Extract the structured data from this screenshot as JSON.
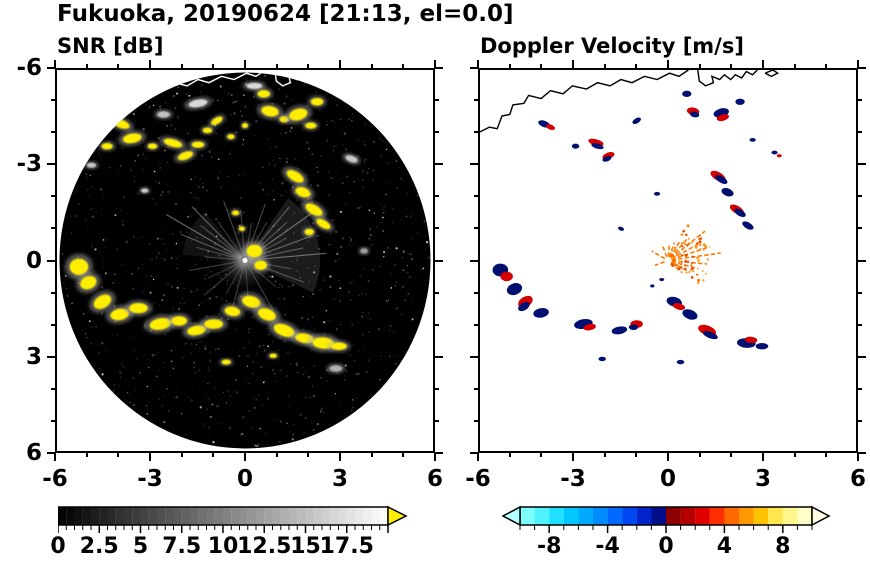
{
  "header": {
    "title": "Fukuoka, 20190624 [21:13, el=0.0]"
  },
  "panels": {
    "snr": {
      "title": "SNR [dB]"
    },
    "doppler": {
      "title": "Doppler Velocity [m/s]"
    }
  },
  "axes": {
    "range": [
      -6,
      6
    ],
    "major_tick_values": [
      -6,
      -3,
      0,
      3,
      6
    ],
    "minor_tick_step": 1,
    "x_tick_labels": [
      "-6",
      "-3",
      "0",
      "3",
      "6"
    ],
    "y_tick_labels": [
      "6",
      "3",
      "0",
      "-3",
      "-6"
    ]
  },
  "coastline": {
    "main": [
      [
        -6.0,
        4.05
      ],
      [
        -5.7,
        4.2
      ],
      [
        -5.45,
        4.15
      ],
      [
        -5.3,
        4.55
      ],
      [
        -5.05,
        4.6
      ],
      [
        -4.95,
        4.9
      ],
      [
        -4.6,
        4.95
      ],
      [
        -4.45,
        5.2
      ],
      [
        -4.05,
        5.1
      ],
      [
        -3.75,
        5.35
      ],
      [
        -3.35,
        5.25
      ],
      [
        -3.05,
        5.5
      ],
      [
        -2.6,
        5.4
      ],
      [
        -2.25,
        5.6
      ],
      [
        -1.85,
        5.5
      ],
      [
        -1.5,
        5.7
      ],
      [
        -1.15,
        5.6
      ],
      [
        -0.75,
        5.8
      ],
      [
        -0.35,
        5.7
      ],
      [
        0.05,
        5.9
      ],
      [
        0.35,
        5.8
      ],
      [
        0.65,
        6.0
      ]
    ],
    "peninsula": [
      [
        0.95,
        6.0
      ],
      [
        1.0,
        5.65
      ],
      [
        1.2,
        5.5
      ],
      [
        1.45,
        5.6
      ],
      [
        1.4,
        5.8
      ],
      [
        1.65,
        5.7
      ],
      [
        1.8,
        5.85
      ],
      [
        2.0,
        5.7
      ],
      [
        2.15,
        5.85
      ],
      [
        2.35,
        5.75
      ],
      [
        2.5,
        5.95
      ],
      [
        2.7,
        5.85
      ],
      [
        2.85,
        6.0
      ]
    ],
    "island": [
      [
        3.1,
        5.9
      ],
      [
        3.3,
        5.8
      ],
      [
        3.5,
        5.9
      ],
      [
        3.35,
        6.0
      ],
      [
        3.1,
        5.9
      ]
    ]
  },
  "velocity_colors": {
    "navy": "#001070",
    "red": "#d40000",
    "blue": "#2a52ee",
    "orange": "#ff7a00"
  },
  "chart_data": [
    {
      "type": "heatmap",
      "title": "SNR [dB]",
      "xlabel": "",
      "ylabel": "",
      "xlim": [
        -6,
        6
      ],
      "ylim": [
        -6,
        6
      ],
      "radar_disk": {
        "center": [
          0,
          0
        ],
        "radius": 5.92,
        "background": "#000000"
      },
      "colorbar": {
        "min": 0,
        "max": 20,
        "step": 0.5,
        "tick_labels": [
          "0",
          "2.5",
          "5",
          "7.5",
          "10",
          "12.5",
          "15",
          "17.5"
        ],
        "scheme": "grayscale black-to-white",
        "overflow_color": "#ffee00"
      },
      "echo_color": "#ffee00",
      "echoes": [
        [
          -3.95,
          4.3,
          0.28,
          0.13,
          -20
        ],
        [
          -3.6,
          3.85,
          0.3,
          0.15,
          10
        ],
        [
          -4.4,
          3.6,
          0.18,
          0.1,
          0
        ],
        [
          -2.95,
          3.6,
          0.15,
          0.09,
          0
        ],
        [
          -2.3,
          3.7,
          0.3,
          0.12,
          -15
        ],
        [
          -1.9,
          3.3,
          0.25,
          0.12,
          20
        ],
        [
          -1.5,
          3.65,
          0.2,
          0.1,
          0
        ],
        [
          -1.2,
          4.1,
          0.15,
          0.09,
          0
        ],
        [
          -0.9,
          4.4,
          0.2,
          0.1,
          30
        ],
        [
          -0.45,
          3.9,
          0.12,
          0.08,
          0
        ],
        [
          0.0,
          4.25,
          0.1,
          0.08,
          0
        ],
        [
          0.6,
          5.25,
          0.2,
          0.12,
          0
        ],
        [
          0.8,
          4.7,
          0.28,
          0.16,
          -10
        ],
        [
          1.25,
          4.45,
          0.15,
          0.1,
          0
        ],
        [
          1.7,
          4.6,
          0.3,
          0.18,
          15
        ],
        [
          2.3,
          5.0,
          0.2,
          0.12,
          0
        ],
        [
          2.1,
          4.25,
          0.18,
          0.1,
          0
        ],
        [
          1.6,
          2.65,
          0.3,
          0.15,
          -30
        ],
        [
          1.85,
          2.15,
          0.25,
          0.15,
          -20
        ],
        [
          2.2,
          1.6,
          0.3,
          0.15,
          -30
        ],
        [
          2.5,
          1.15,
          0.25,
          0.12,
          -30
        ],
        [
          2.05,
          0.9,
          0.15,
          0.1,
          0
        ],
        [
          -5.3,
          -0.2,
          0.3,
          0.26,
          0
        ],
        [
          -5.0,
          -0.7,
          0.27,
          0.2,
          20
        ],
        [
          -4.55,
          -1.3,
          0.3,
          0.2,
          30
        ],
        [
          -4.0,
          -1.7,
          0.3,
          0.18,
          10
        ],
        [
          -3.4,
          -1.5,
          0.3,
          0.16,
          0
        ],
        [
          -2.7,
          -2.0,
          0.35,
          0.18,
          10
        ],
        [
          -2.1,
          -1.9,
          0.25,
          0.15,
          0
        ],
        [
          -1.55,
          -2.2,
          0.3,
          0.15,
          10
        ],
        [
          -1.0,
          -2.0,
          0.3,
          0.15,
          0
        ],
        [
          -0.4,
          -1.6,
          0.25,
          0.15,
          -10
        ],
        [
          0.2,
          -1.3,
          0.3,
          0.18,
          -15
        ],
        [
          0.7,
          -1.7,
          0.3,
          0.18,
          -20
        ],
        [
          1.25,
          -2.2,
          0.35,
          0.18,
          -20
        ],
        [
          1.9,
          -2.45,
          0.3,
          0.15,
          -10
        ],
        [
          2.5,
          -2.6,
          0.35,
          0.18,
          -5
        ],
        [
          3.0,
          -2.7,
          0.25,
          0.12,
          0
        ],
        [
          -0.3,
          1.5,
          0.12,
          0.08,
          0
        ],
        [
          -0.1,
          1.0,
          0.1,
          0.07,
          0
        ],
        [
          0.3,
          0.3,
          0.25,
          0.2,
          0
        ],
        [
          0.5,
          -0.15,
          0.2,
          0.15,
          0
        ],
        [
          -0.6,
          -3.2,
          0.15,
          0.08,
          0
        ],
        [
          0.9,
          -3.0,
          0.12,
          0.07,
          0
        ],
        [
          -4.9,
          3.0,
          0.15,
          0.08,
          0,
          "#c8c8c8"
        ],
        [
          3.4,
          3.2,
          0.2,
          0.1,
          -20,
          "#c8c8c8"
        ],
        [
          -3.2,
          2.2,
          0.12,
          0.07,
          0,
          "#c8c8c8"
        ],
        [
          2.9,
          -3.4,
          0.2,
          0.1,
          0,
          "#b0b0b0"
        ],
        [
          -1.5,
          4.95,
          0.3,
          0.12,
          10,
          "#d8d8d8"
        ],
        [
          0.3,
          5.5,
          0.25,
          0.1,
          0,
          "#d8d8d8"
        ],
        [
          -2.6,
          4.6,
          0.2,
          0.1,
          0,
          "#c0c0c0"
        ],
        [
          3.8,
          0.3,
          0.12,
          0.08,
          0,
          "#a0a0a0"
        ]
      ],
      "clutter_fans": [
        {
          "a0": -25,
          "a1": 55,
          "r": 2.4,
          "opacity": 0.18
        },
        {
          "a0": 130,
          "a1": 175,
          "r": 2.0,
          "opacity": 0.12
        }
      ],
      "clutter_rays": [
        [
          5,
          2.6,
          0.5
        ],
        [
          12,
          1.9,
          0.4
        ],
        [
          20,
          2.3,
          0.45
        ],
        [
          28,
          1.5,
          0.35
        ],
        [
          35,
          2.8,
          0.5
        ],
        [
          42,
          1.8,
          0.35
        ],
        [
          50,
          2.2,
          0.4
        ],
        [
          60,
          1.4,
          0.3
        ],
        [
          70,
          1.9,
          0.35
        ],
        [
          80,
          1.2,
          0.3
        ],
        [
          95,
          1.6,
          0.3
        ],
        [
          110,
          2.0,
          0.35
        ],
        [
          125,
          1.5,
          0.3
        ],
        [
          135,
          2.4,
          0.45
        ],
        [
          142,
          1.8,
          0.35
        ],
        [
          150,
          2.9,
          0.5
        ],
        [
          158,
          2.2,
          0.4
        ],
        [
          165,
          1.6,
          0.3
        ],
        [
          175,
          1.3,
          0.3
        ],
        [
          190,
          1.8,
          0.3
        ],
        [
          205,
          1.3,
          0.25
        ],
        [
          220,
          1.7,
          0.3
        ],
        [
          240,
          1.2,
          0.25
        ],
        [
          255,
          1.6,
          0.3
        ],
        [
          275,
          1.4,
          0.25
        ],
        [
          300,
          1.8,
          0.3
        ],
        [
          320,
          1.3,
          0.25
        ],
        [
          340,
          2.0,
          0.35
        ],
        [
          350,
          1.5,
          0.3
        ]
      ]
    },
    {
      "type": "heatmap",
      "title": "Doppler Velocity [m/s]",
      "xlabel": "",
      "ylabel": "",
      "xlim": [
        -6,
        6
      ],
      "ylim": [
        -6,
        6
      ],
      "background": "#ffffff",
      "colorbar": {
        "min": -10,
        "max": 10,
        "step": 1,
        "tick_labels": [
          "-8",
          "-4",
          "0",
          "4",
          "8"
        ],
        "segment_colors": [
          "#7dffff",
          "#4df3ff",
          "#1fe0ff",
          "#00c8ff",
          "#00aaff",
          "#008cff",
          "#006aff",
          "#0046f0",
          "#0024cc",
          "#000d8a",
          "#8a0000",
          "#b50000",
          "#e00000",
          "#ff3000",
          "#ff6a00",
          "#ff9700",
          "#ffc100",
          "#ffe650",
          "#fff78e",
          "#ffffc8"
        ],
        "under_color": "#b4ffff",
        "over_color": "#ffffe8"
      },
      "echoes": [
        [
          -3.95,
          4.3,
          0.2,
          0.1,
          -20,
          "navy"
        ],
        [
          -3.75,
          4.2,
          0.15,
          0.08,
          -20,
          "red"
        ],
        [
          -2.95,
          3.6,
          0.12,
          0.08,
          0,
          "navy"
        ],
        [
          -2.3,
          3.72,
          0.25,
          0.1,
          -15,
          "red"
        ],
        [
          -2.25,
          3.6,
          0.2,
          0.08,
          -15,
          "navy"
        ],
        [
          -1.9,
          3.3,
          0.2,
          0.1,
          20,
          "red"
        ],
        [
          -1.95,
          3.2,
          0.15,
          0.08,
          20,
          "navy"
        ],
        [
          -1.0,
          4.4,
          0.15,
          0.08,
          30,
          "navy"
        ],
        [
          0.6,
          5.25,
          0.15,
          0.1,
          0,
          "navy"
        ],
        [
          0.8,
          4.7,
          0.2,
          0.12,
          -10,
          "red"
        ],
        [
          0.85,
          4.6,
          0.15,
          0.09,
          -10,
          "navy"
        ],
        [
          1.7,
          4.65,
          0.25,
          0.14,
          15,
          "navy"
        ],
        [
          1.75,
          4.5,
          0.2,
          0.1,
          15,
          "red"
        ],
        [
          2.3,
          5.0,
          0.15,
          0.1,
          0,
          "navy"
        ],
        [
          2.7,
          3.8,
          0.1,
          0.06,
          0,
          "navy"
        ],
        [
          3.4,
          3.4,
          0.1,
          0.06,
          0,
          "navy"
        ],
        [
          3.55,
          3.3,
          0.08,
          0.05,
          0,
          "red"
        ],
        [
          1.6,
          2.65,
          0.27,
          0.13,
          -30,
          "red"
        ],
        [
          1.7,
          2.55,
          0.22,
          0.1,
          -30,
          "navy"
        ],
        [
          1.9,
          2.15,
          0.2,
          0.12,
          -20,
          "navy"
        ],
        [
          2.2,
          1.6,
          0.25,
          0.12,
          -30,
          "red"
        ],
        [
          2.3,
          1.5,
          0.2,
          0.1,
          -30,
          "navy"
        ],
        [
          2.55,
          1.1,
          0.2,
          0.1,
          -30,
          "navy"
        ],
        [
          -0.35,
          2.1,
          0.1,
          0.06,
          0,
          "navy"
        ],
        [
          -1.5,
          1.0,
          0.1,
          0.06,
          -20,
          "navy"
        ],
        [
          -5.35,
          -0.3,
          0.25,
          0.2,
          0,
          "navy"
        ],
        [
          -5.15,
          -0.5,
          0.2,
          0.15,
          0,
          "red"
        ],
        [
          -4.9,
          -0.9,
          0.25,
          0.18,
          20,
          "navy"
        ],
        [
          -4.55,
          -1.3,
          0.25,
          0.16,
          30,
          "red"
        ],
        [
          -4.6,
          -1.45,
          0.2,
          0.12,
          30,
          "navy"
        ],
        [
          -4.05,
          -1.65,
          0.25,
          0.15,
          10,
          "navy"
        ],
        [
          -2.7,
          -2.0,
          0.3,
          0.15,
          10,
          "navy"
        ],
        [
          -2.5,
          -2.1,
          0.2,
          0.1,
          10,
          "red"
        ],
        [
          -1.55,
          -2.2,
          0.25,
          0.12,
          10,
          "navy"
        ],
        [
          -1.0,
          -2.0,
          0.2,
          0.12,
          0,
          "red"
        ],
        [
          -1.1,
          -2.1,
          0.15,
          0.09,
          0,
          "navy"
        ],
        [
          0.2,
          -1.3,
          0.25,
          0.15,
          -15,
          "navy"
        ],
        [
          0.35,
          -1.45,
          0.2,
          0.1,
          -15,
          "red"
        ],
        [
          0.7,
          -1.7,
          0.25,
          0.15,
          -20,
          "navy"
        ],
        [
          1.25,
          -2.2,
          0.3,
          0.15,
          -20,
          "red"
        ],
        [
          1.35,
          -2.35,
          0.25,
          0.1,
          -20,
          "navy"
        ],
        [
          2.5,
          -2.6,
          0.3,
          0.15,
          -5,
          "navy"
        ],
        [
          2.65,
          -2.5,
          0.2,
          0.1,
          -5,
          "red"
        ],
        [
          3.0,
          -2.7,
          0.2,
          0.1,
          0,
          "navy"
        ],
        [
          0.4,
          -3.2,
          0.12,
          0.07,
          0,
          "navy"
        ],
        [
          -2.1,
          -3.1,
          0.12,
          0.07,
          0,
          "navy"
        ],
        [
          -0.2,
          -0.6,
          0.08,
          0.05,
          0,
          "navy"
        ],
        [
          -0.5,
          -0.8,
          0.07,
          0.05,
          0,
          "navy"
        ]
      ],
      "center_streaks": [
        [
          8,
          1.7
        ],
        [
          18,
          1.4
        ],
        [
          28,
          1.15
        ],
        [
          38,
          1.5
        ],
        [
          48,
          0.9
        ],
        [
          58,
          0.7
        ],
        [
          -5,
          1.25
        ],
        [
          -15,
          1.0
        ],
        [
          -28,
          0.8
        ],
        [
          -40,
          0.6
        ],
        [
          70,
          0.6
        ],
        [
          85,
          0.5
        ],
        [
          110,
          0.55
        ],
        [
          150,
          0.6
        ],
        [
          200,
          0.45
        ]
      ],
      "streak_color": "#ff7a00"
    }
  ]
}
